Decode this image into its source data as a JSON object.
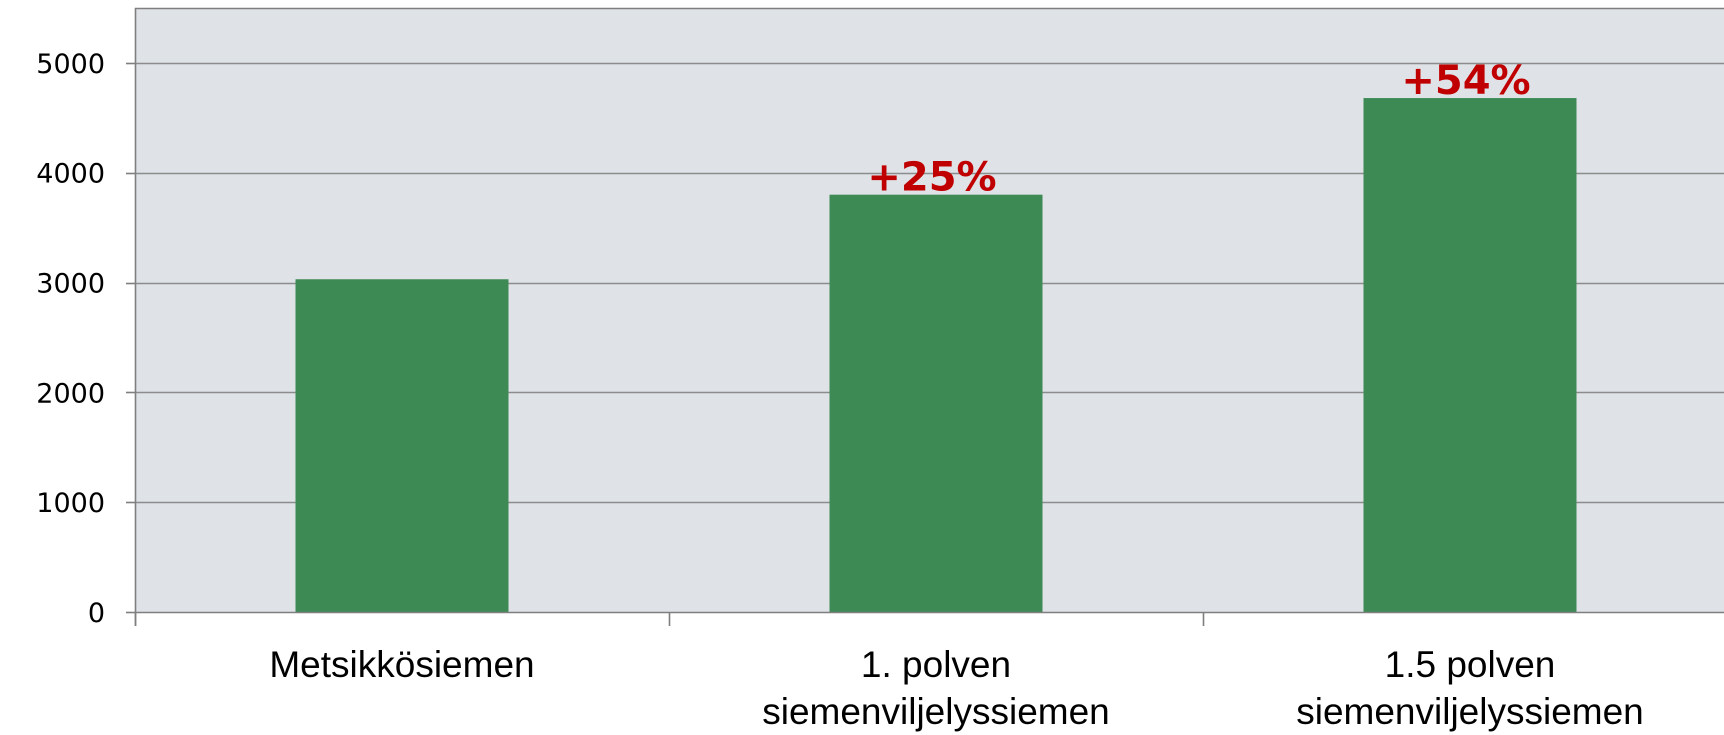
{
  "chart_data": {
    "type": "bar",
    "categories": [
      [
        "Metsikkösiemen"
      ],
      [
        "1. polven",
        "siemenviljelyssiemen"
      ],
      [
        "1.5 polven",
        "siemenviljelyssiemen"
      ]
    ],
    "values": [
      3030,
      3800,
      4680
    ],
    "data_labels": [
      "",
      "+25%",
      "+54%"
    ],
    "ylim": [
      0,
      5500
    ],
    "yticks": [
      0,
      1000,
      2000,
      3000,
      4000,
      5000
    ],
    "title": "",
    "xlabel": "",
    "ylabel": "",
    "grid": true,
    "colors": {
      "bar": "#3e8a55",
      "plot_background": "#dfe3e7",
      "gridline": "#8c8c8c",
      "data_label": "#c00000"
    }
  }
}
